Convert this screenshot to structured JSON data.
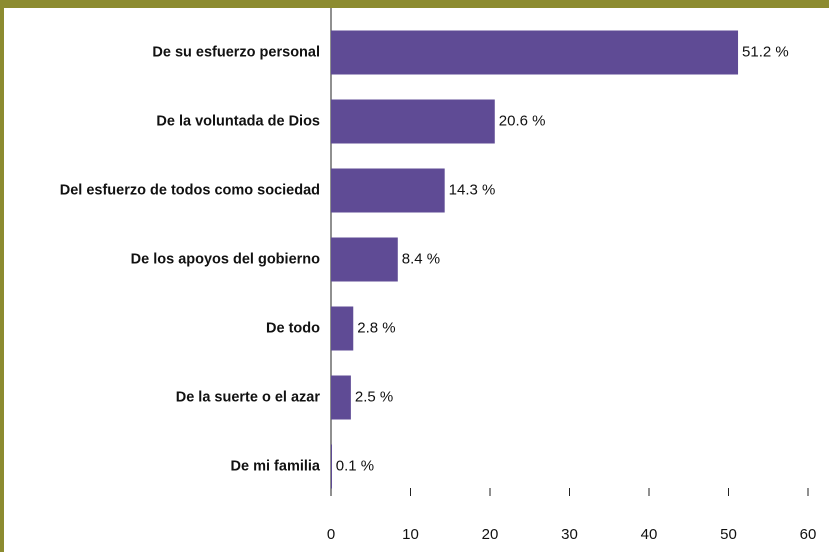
{
  "chart_data": {
    "type": "bar",
    "orientation": "horizontal",
    "categories": [
      "De su esfuerzo personal",
      "De la voluntada de Dios",
      "Del esfuerzo de todos como sociedad",
      "De los apoyos del gobierno",
      "De todo",
      "De la suerte o el azar",
      "De mi familia"
    ],
    "values": [
      51.2,
      20.6,
      14.3,
      8.4,
      2.8,
      2.5,
      0.1
    ],
    "value_labels": [
      "51.2 %",
      "20.6 %",
      "14.3 %",
      "8.4 %",
      "2.8 %",
      "2.5 %",
      "0.1 %"
    ],
    "color": "#5f4b95",
    "xlim": [
      0,
      60
    ],
    "xticks": [
      0,
      10,
      20,
      30,
      40,
      50,
      60
    ],
    "grid": false
  }
}
